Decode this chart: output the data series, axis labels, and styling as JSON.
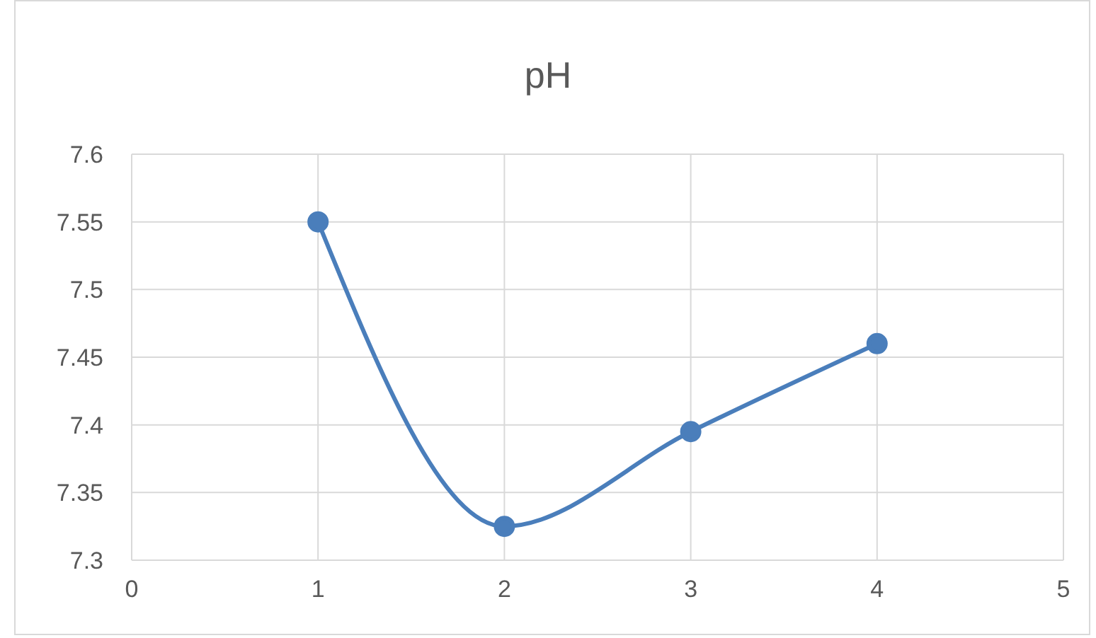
{
  "chart_data": {
    "type": "line",
    "title": "pH",
    "x": [
      1,
      2,
      3,
      4
    ],
    "series": [
      {
        "color": "#4a7ebb",
        "values": [
          7.55,
          7.325,
          7.395,
          7.46
        ]
      }
    ],
    "xlim": [
      0,
      5
    ],
    "xticks": [
      0,
      1,
      2,
      3,
      4,
      5
    ],
    "ylim": [
      7.3,
      7.6
    ],
    "yticks": [
      7.3,
      7.35,
      7.4,
      7.45,
      7.5,
      7.55,
      7.6
    ],
    "grid": true,
    "marker": "circle",
    "line_style": "solid",
    "legend": false
  }
}
